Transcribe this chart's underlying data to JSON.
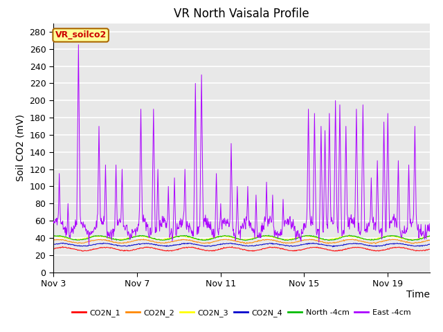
{
  "title": "VR North Vaisala Profile",
  "ylabel": "Soil CO2 (mV)",
  "xlabel": "Time",
  "annotation_text": "VR_soilco2",
  "annotation_color": "#cc0000",
  "annotation_bg": "#ffff99",
  "annotation_border": "#aa6600",
  "ylim": [
    0,
    290
  ],
  "yticks": [
    0,
    20,
    40,
    60,
    80,
    100,
    120,
    140,
    160,
    180,
    200,
    220,
    240,
    260,
    280
  ],
  "xtick_labels": [
    "Nov 3",
    "Nov 7",
    "Nov 11",
    "Nov 15",
    "Nov 19"
  ],
  "xtick_positions": [
    0,
    4,
    8,
    12,
    16
  ],
  "xlim": [
    0,
    18
  ],
  "background_color": "#e8e8e8",
  "grid_color": "#ffffff",
  "legend_entries": [
    {
      "label": "CO2N_1",
      "color": "#ff0000"
    },
    {
      "label": "CO2N_2",
      "color": "#ff8800"
    },
    {
      "label": "CO2N_3",
      "color": "#ffff00"
    },
    {
      "label": "CO2N_4",
      "color": "#0000cc"
    },
    {
      "label": "North -4cm",
      "color": "#00bb00"
    },
    {
      "label": "East -4cm",
      "color": "#aa00ff"
    }
  ],
  "title_fontsize": 12,
  "axis_fontsize": 10,
  "tick_fontsize": 9,
  "n_days": 18,
  "pts_per_day": 48
}
